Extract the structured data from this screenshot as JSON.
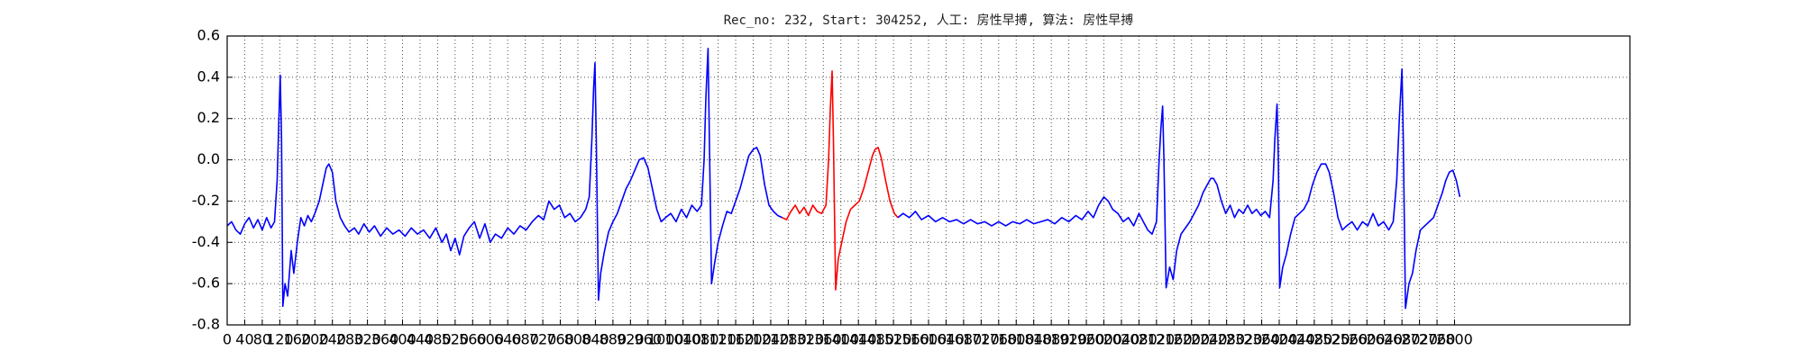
{
  "chart_data": {
    "type": "line",
    "title": "Rec_no: 232, Start: 304252, 人工: 房性早搏, 算法: 房性早搏",
    "xlim": [
      0,
      3200
    ],
    "xticks": [
      0,
      40,
      80,
      120,
      160,
      200,
      240,
      280,
      320,
      360,
      400,
      440,
      480,
      520,
      560,
      600,
      640,
      680,
      720,
      760,
      800,
      840,
      880,
      920,
      960,
      1000,
      1040,
      1080,
      1120,
      1160,
      1200,
      1240,
      1280,
      1320,
      1360,
      1400,
      1440,
      1480,
      1520,
      1560,
      1600,
      1640,
      1680,
      1720,
      1760,
      1800,
      1840,
      1880,
      1920,
      1960,
      2000,
      2040,
      2080,
      2120,
      2160,
      2200,
      2240,
      2280,
      2320,
      2360,
      2400,
      2440,
      2480,
      2520,
      2560,
      2600,
      2640,
      2680,
      2720,
      2760,
      2800
    ],
    "ylim": [
      -0.8,
      0.6
    ],
    "yticks": [
      -0.8,
      -0.6,
      -0.4,
      -0.2,
      {
        "value": 0,
        "label": "0.0"
      },
      0.2,
      0.4,
      0.6
    ],
    "grid": true,
    "series": [
      {
        "color": "#0000ff",
        "x": [
          0,
          10,
          20,
          30,
          40,
          50,
          60,
          70,
          80,
          90,
          100,
          108,
          114,
          118,
          121,
          124,
          127,
          132,
          138,
          146,
          152,
          160,
          168,
          176,
          184,
          192,
          200,
          210,
          218,
          226,
          232,
          240,
          248,
          258,
          268,
          278,
          290,
          300,
          312,
          324,
          336,
          350,
          364,
          378,
          392,
          406,
          420,
          434,
          448,
          462,
          476,
          490,
          500,
          510,
          520,
          530,
          540,
          552,
          564,
          576,
          588,
          600,
          612,
          626,
          640,
          654,
          668,
          682,
          696,
          710,
          722,
          734,
          746,
          758,
          770,
          782,
          794,
          806,
          818,
          826,
          832,
          836,
          839,
          842,
          847,
          852,
          860,
          870,
          880,
          890,
          900,
          910,
          920,
          930,
          940,
          950,
          960,
          970,
          980,
          990,
          1000,
          1012,
          1024,
          1036,
          1048,
          1060,
          1072,
          1082,
          1088,
          1092,
          1097,
          1100,
          1105,
          1112,
          1120,
          1130,
          1140,
          1150,
          1160,
          1170,
          1180,
          1190,
          1200,
          1208,
          1216,
          1226,
          1236,
          1246,
          1256,
          1266
        ],
        "values": [
          -0.32,
          -0.3,
          -0.34,
          -0.36,
          -0.31,
          -0.28,
          -0.33,
          -0.29,
          -0.34,
          -0.28,
          -0.33,
          -0.3,
          -0.1,
          0.2,
          0.41,
          0.1,
          -0.71,
          -0.6,
          -0.66,
          -0.44,
          -0.55,
          -0.4,
          -0.28,
          -0.32,
          -0.27,
          -0.3,
          -0.26,
          -0.2,
          -0.12,
          -0.04,
          -0.02,
          -0.06,
          -0.2,
          -0.28,
          -0.32,
          -0.35,
          -0.33,
          -0.36,
          -0.31,
          -0.35,
          -0.32,
          -0.37,
          -0.33,
          -0.36,
          -0.34,
          -0.37,
          -0.33,
          -0.36,
          -0.34,
          -0.38,
          -0.33,
          -0.4,
          -0.36,
          -0.44,
          -0.38,
          -0.46,
          -0.37,
          -0.33,
          -0.3,
          -0.38,
          -0.31,
          -0.4,
          -0.36,
          -0.38,
          -0.33,
          -0.36,
          -0.32,
          -0.34,
          -0.3,
          -0.27,
          -0.29,
          -0.2,
          -0.24,
          -0.22,
          -0.28,
          -0.26,
          -0.3,
          -0.28,
          -0.24,
          -0.18,
          0.1,
          0.35,
          0.47,
          0.1,
          -0.68,
          -0.55,
          -0.45,
          -0.35,
          -0.3,
          -0.26,
          -0.2,
          -0.14,
          -0.1,
          -0.05,
          0.0,
          0.01,
          -0.04,
          -0.14,
          -0.24,
          -0.3,
          -0.28,
          -0.26,
          -0.3,
          -0.24,
          -0.28,
          -0.22,
          -0.25,
          -0.22,
          0.0,
          0.3,
          0.54,
          0.1,
          -0.6,
          -0.5,
          -0.4,
          -0.32,
          -0.25,
          -0.26,
          -0.2,
          -0.14,
          -0.06,
          0.02,
          0.05,
          0.06,
          0.02,
          -0.12,
          -0.22,
          -0.25,
          -0.27,
          -0.28
        ]
      },
      {
        "color": "#ff0000",
        "x": [
          1266,
          1276,
          1286,
          1296,
          1306,
          1316,
          1326,
          1336,
          1346,
          1356,
          1366,
          1372,
          1376,
          1380,
          1383,
          1388,
          1394,
          1402,
          1412,
          1422,
          1432,
          1442,
          1452,
          1462,
          1472,
          1478,
          1485,
          1492,
          1502,
          1512,
          1522,
          1530
        ],
        "values": [
          -0.28,
          -0.29,
          -0.25,
          -0.22,
          -0.26,
          -0.23,
          -0.27,
          -0.22,
          -0.25,
          -0.26,
          -0.22,
          0.0,
          0.25,
          0.43,
          0.1,
          -0.63,
          -0.48,
          -0.4,
          -0.3,
          -0.24,
          -0.22,
          -0.2,
          -0.14,
          -0.06,
          0.02,
          0.05,
          0.06,
          0.01,
          -0.1,
          -0.2,
          -0.26,
          -0.28
        ]
      },
      {
        "color": "#0000ff",
        "x": [
          1530,
          1542,
          1556,
          1570,
          1584,
          1600,
          1616,
          1632,
          1648,
          1664,
          1680,
          1696,
          1712,
          1728,
          1744,
          1760,
          1776,
          1792,
          1808,
          1824,
          1840,
          1856,
          1872,
          1888,
          1904,
          1920,
          1936,
          1950,
          1964,
          1976,
          1988,
          2000,
          2010,
          2020,
          2032,
          2044,
          2056,
          2068,
          2080,
          2090,
          2100,
          2110,
          2120,
          2126,
          2130,
          2134,
          2137,
          2142,
          2150,
          2158,
          2166,
          2176,
          2186,
          2196,
          2206,
          2216,
          2226,
          2236,
          2244,
          2250,
          2258,
          2268,
          2278,
          2288,
          2298,
          2308,
          2318,
          2328,
          2338,
          2348,
          2358,
          2368,
          2378,
          2386,
          2390,
          2395,
          2398,
          2401,
          2408,
          2416,
          2426,
          2436,
          2446,
          2456,
          2466,
          2476,
          2486,
          2496,
          2506,
          2514,
          2524,
          2534,
          2544,
          2554,
          2566,
          2578,
          2590,
          2602,
          2614,
          2626,
          2638,
          2650,
          2660,
          2668,
          2674,
          2680,
          2683,
          2688,
          2696,
          2704,
          2712,
          2722,
          2732,
          2742,
          2752,
          2762,
          2772,
          2780,
          2788,
          2796,
          2804,
          2812
        ],
        "values": [
          -0.28,
          -0.26,
          -0.28,
          -0.25,
          -0.29,
          -0.27,
          -0.3,
          -0.28,
          -0.3,
          -0.29,
          -0.31,
          -0.29,
          -0.31,
          -0.3,
          -0.32,
          -0.3,
          -0.32,
          -0.3,
          -0.31,
          -0.29,
          -0.31,
          -0.3,
          -0.29,
          -0.31,
          -0.28,
          -0.3,
          -0.27,
          -0.29,
          -0.25,
          -0.28,
          -0.22,
          -0.18,
          -0.2,
          -0.24,
          -0.26,
          -0.3,
          -0.28,
          -0.32,
          -0.26,
          -0.3,
          -0.34,
          -0.36,
          -0.3,
          0.0,
          0.15,
          0.26,
          0.0,
          -0.62,
          -0.52,
          -0.58,
          -0.44,
          -0.36,
          -0.33,
          -0.3,
          -0.26,
          -0.22,
          -0.16,
          -0.12,
          -0.09,
          -0.09,
          -0.12,
          -0.2,
          -0.26,
          -0.22,
          -0.28,
          -0.24,
          -0.26,
          -0.22,
          -0.26,
          -0.24,
          -0.27,
          -0.25,
          -0.28,
          -0.1,
          0.1,
          0.27,
          0.0,
          -0.62,
          -0.52,
          -0.46,
          -0.36,
          -0.28,
          -0.26,
          -0.24,
          -0.2,
          -0.12,
          -0.06,
          -0.02,
          -0.02,
          -0.06,
          -0.16,
          -0.28,
          -0.34,
          -0.32,
          -0.3,
          -0.34,
          -0.3,
          -0.32,
          -0.26,
          -0.32,
          -0.3,
          -0.34,
          -0.3,
          -0.1,
          0.2,
          0.44,
          0.1,
          -0.72,
          -0.6,
          -0.55,
          -0.44,
          -0.34,
          -0.32,
          -0.3,
          -0.28,
          -0.22,
          -0.16,
          -0.1,
          -0.06,
          -0.05,
          -0.1,
          -0.18
        ]
      }
    ]
  }
}
